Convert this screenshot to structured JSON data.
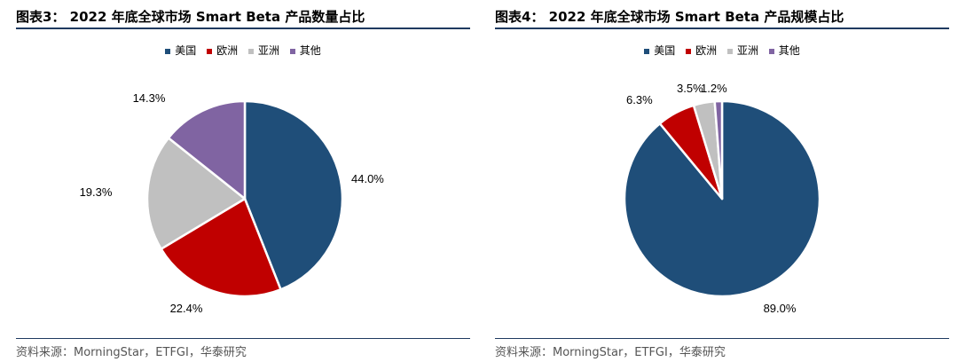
{
  "colors": {
    "us": "#1f4e79",
    "europe": "#c00000",
    "asia": "#c0c0c0",
    "other": "#8064a2",
    "rule": "#1f3a60"
  },
  "chart_data": [
    {
      "type": "pie",
      "title": "图表3：  2022 年底全球市场 Smart Beta 产品数量占比",
      "legend_position": "top",
      "categories": [
        "美国",
        "欧洲",
        "亚洲",
        "其他"
      ],
      "values": [
        44.0,
        22.4,
        19.3,
        14.3
      ],
      "labels": [
        "44.0%",
        "22.4%",
        "19.3%",
        "14.3%"
      ],
      "source": "资料来源：MorningStar，ETFGI，华泰研究"
    },
    {
      "type": "pie",
      "title": "图表4：  2022 年底全球市场 Smart Beta 产品规模占比",
      "legend_position": "top",
      "categories": [
        "美国",
        "欧洲",
        "亚洲",
        "其他"
      ],
      "values": [
        89.0,
        6.3,
        3.5,
        1.2
      ],
      "labels": [
        "89.0%",
        "6.3%",
        "3.5%",
        "1.2%"
      ],
      "source": "资料来源：MorningStar，ETFGI，华泰研究"
    }
  ]
}
